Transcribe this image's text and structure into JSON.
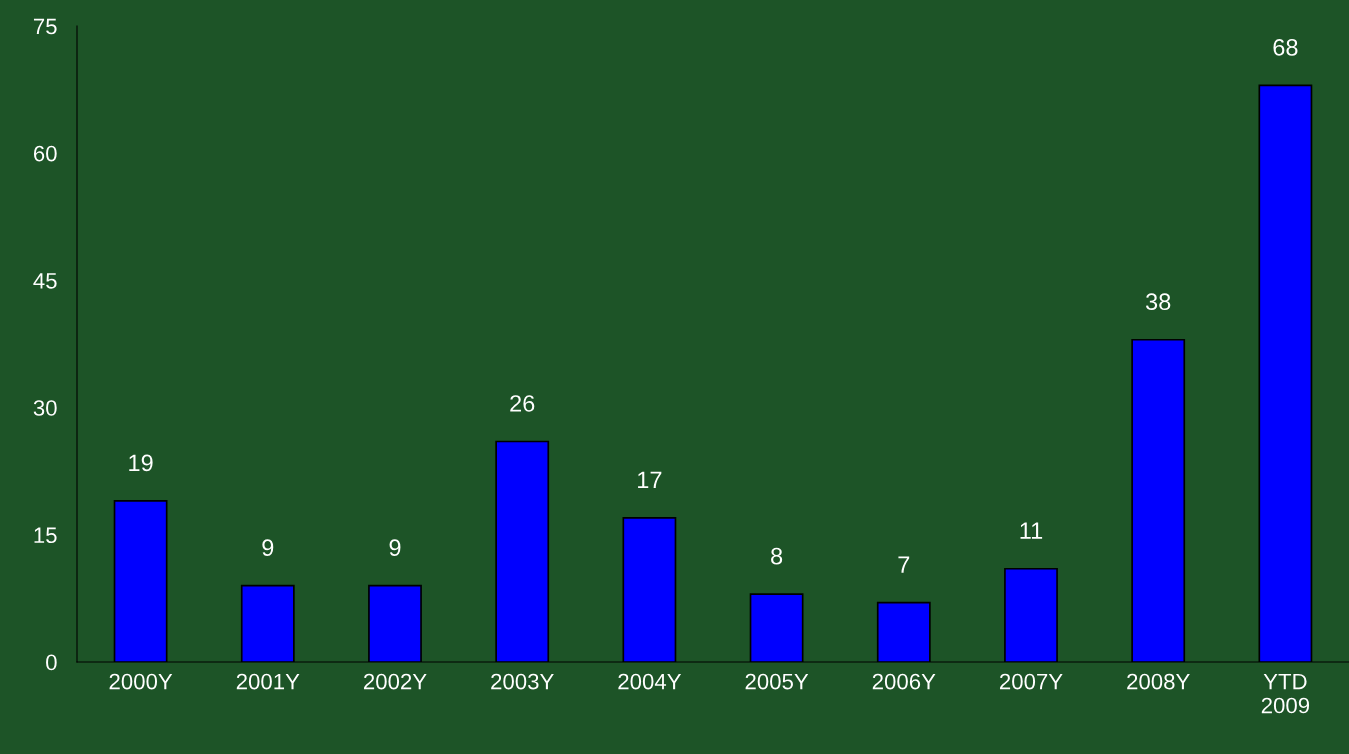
{
  "chart_data": {
    "type": "bar",
    "categories": [
      "2000Y",
      "2001Y",
      "2002Y",
      "2003Y",
      "2004Y",
      "2005Y",
      "2006Y",
      "2007Y",
      "2008Y",
      "YTD\n2009"
    ],
    "values": [
      19,
      9,
      9,
      26,
      17,
      8,
      7,
      11,
      38,
      68
    ],
    "color": "#0000ff",
    "ylim": [
      0,
      75
    ],
    "yticks": [
      0,
      15,
      30,
      45,
      60,
      75
    ],
    "data_labels": true,
    "grid": false,
    "legend": false
  }
}
